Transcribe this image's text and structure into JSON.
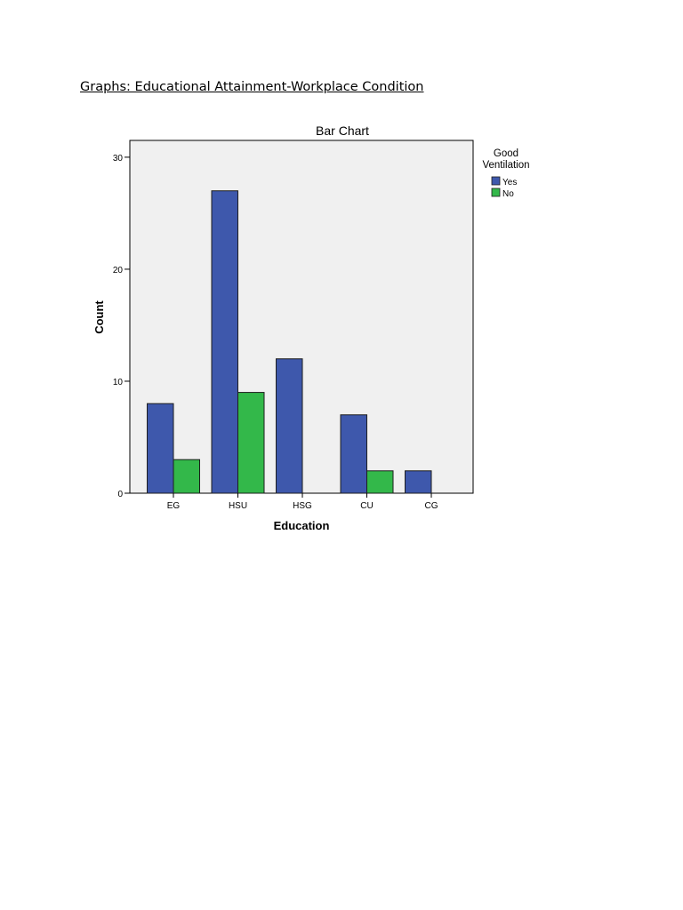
{
  "document": {
    "heading": "Graphs: Educational Attainment-Workplace Condition"
  },
  "colors": {
    "yes": "#3E58AC",
    "no": "#33B84A",
    "plot_background": "#F0F0F0",
    "bar_stroke": "#1E1E1E"
  },
  "chart_data": {
    "type": "bar",
    "title": "Bar Chart",
    "xlabel": "Education",
    "ylabel": "Count",
    "categories": [
      "EG",
      "HSU",
      "HSG",
      "CU",
      "CG"
    ],
    "series": [
      {
        "name": "Yes",
        "values": [
          8,
          27,
          12,
          7,
          2
        ]
      },
      {
        "name": "No",
        "values": [
          3,
          9,
          0,
          2,
          0
        ]
      }
    ],
    "ylim": [
      0,
      31.5
    ],
    "yticks": [
      0,
      10,
      20,
      30
    ],
    "grid": false,
    "legend": {
      "title_lines": [
        "Good",
        "Ventilation"
      ],
      "placement": "right-outside"
    }
  }
}
